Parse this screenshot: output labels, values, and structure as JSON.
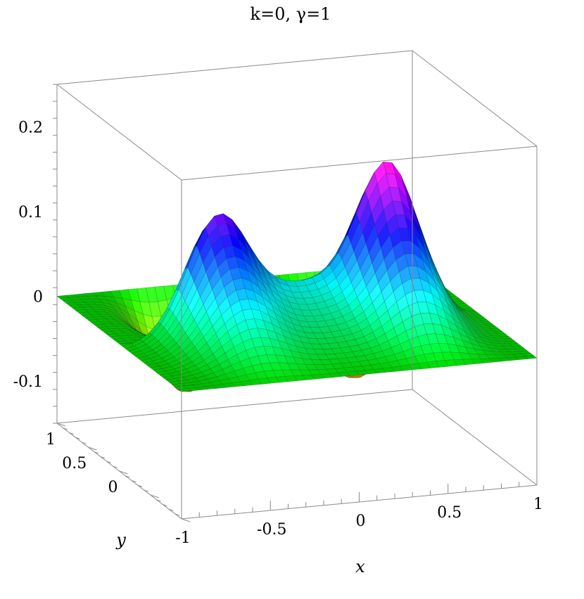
{
  "chart_data": {
    "type": "surface3d",
    "title": "k=0,  γ=1",
    "xlabel": "x",
    "ylabel": "y",
    "zlabel": "",
    "xlim": [
      -1,
      1
    ],
    "ylim": [
      -1,
      1
    ],
    "zlim": [
      -0.15,
      0.25
    ],
    "x_ticks": [
      "-1",
      "-0.5",
      "0",
      "0.5",
      "1"
    ],
    "y_ticks": [
      "0",
      "0.5",
      "1"
    ],
    "z_ticks": [
      "-0.1",
      "0",
      "0.1",
      "0.2"
    ],
    "regions": {
      "y_ge_0": "small membrane with a narrow trough near x=-0.5 (min approx -0.13) and a wide trough near x=0.55 (min approx -0.14); edges at 0",
      "y_lt_0": "tall sheet rising from the y=0 boundary, peaks approx 0.20 at x=-0.5 and 0.26 at x=0.5, dip approx 0.11 at x=0, decaying to 0 by y=-1"
    },
    "sample_points": [
      {
        "x": -0.5,
        "y": 0.5,
        "z": -0.13
      },
      {
        "x": 0.55,
        "y": 0.5,
        "z": -0.14
      },
      {
        "x": -0.5,
        "y": -0.05,
        "z": 0.2
      },
      {
        "x": 0.0,
        "y": -0.05,
        "z": 0.11
      },
      {
        "x": 0.5,
        "y": -0.05,
        "z": 0.26
      },
      {
        "x": 0.0,
        "y": -1.0,
        "z": 0.0
      }
    ],
    "colormap": "hue rainbow: yellow, green, cyan, blue, magenta, red with increasing |z|",
    "grid": false,
    "legend": "none"
  }
}
